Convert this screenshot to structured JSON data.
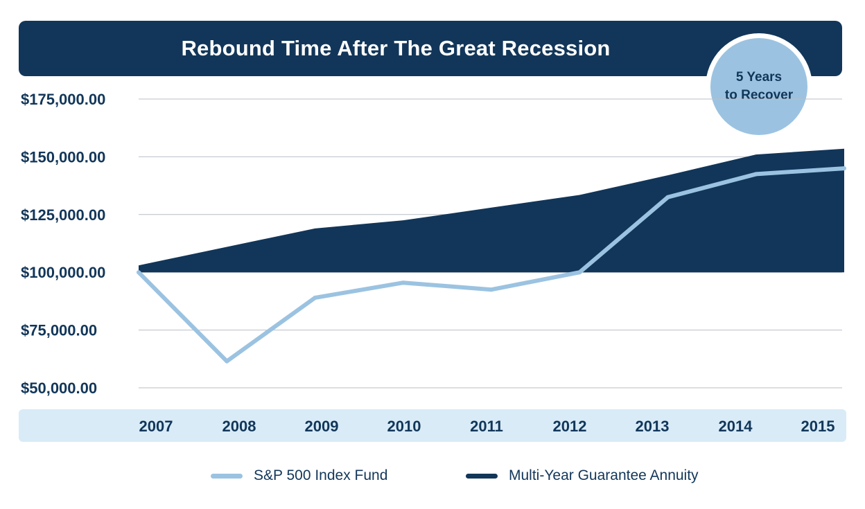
{
  "chart_data": {
    "type": "area",
    "title": "Rebound Time After The Great Recession",
    "badge": {
      "line1": "5 Years",
      "line2": "to Recover"
    },
    "categories": [
      "2007",
      "2008",
      "2009",
      "2010",
      "2011",
      "2012",
      "2013",
      "2014",
      "2015"
    ],
    "y_tick_labels": [
      "$175,000.00",
      "$150,000.00",
      "$125,000.00",
      "$100,000.00",
      "$75,000.00",
      "$50,000.00"
    ],
    "y_tick_values": [
      175000,
      150000,
      125000,
      100000,
      75000,
      50000
    ],
    "ylim": [
      50000,
      175000
    ],
    "area_baseline": 100000,
    "series": [
      {
        "name": "S&P 500 Index Fund",
        "kind": "line",
        "color": "#9bc3e1",
        "values": [
          100000,
          61500,
          89000,
          95500,
          92500,
          100000,
          132500,
          142500,
          145000
        ]
      },
      {
        "name": "Multi-Year Guarantee Annuity",
        "kind": "area",
        "color": "#123659",
        "values": [
          103000,
          111000,
          119000,
          122500,
          128000,
          133500,
          142000,
          151000,
          153500
        ]
      }
    ],
    "grid": true,
    "legend_position": "bottom"
  }
}
